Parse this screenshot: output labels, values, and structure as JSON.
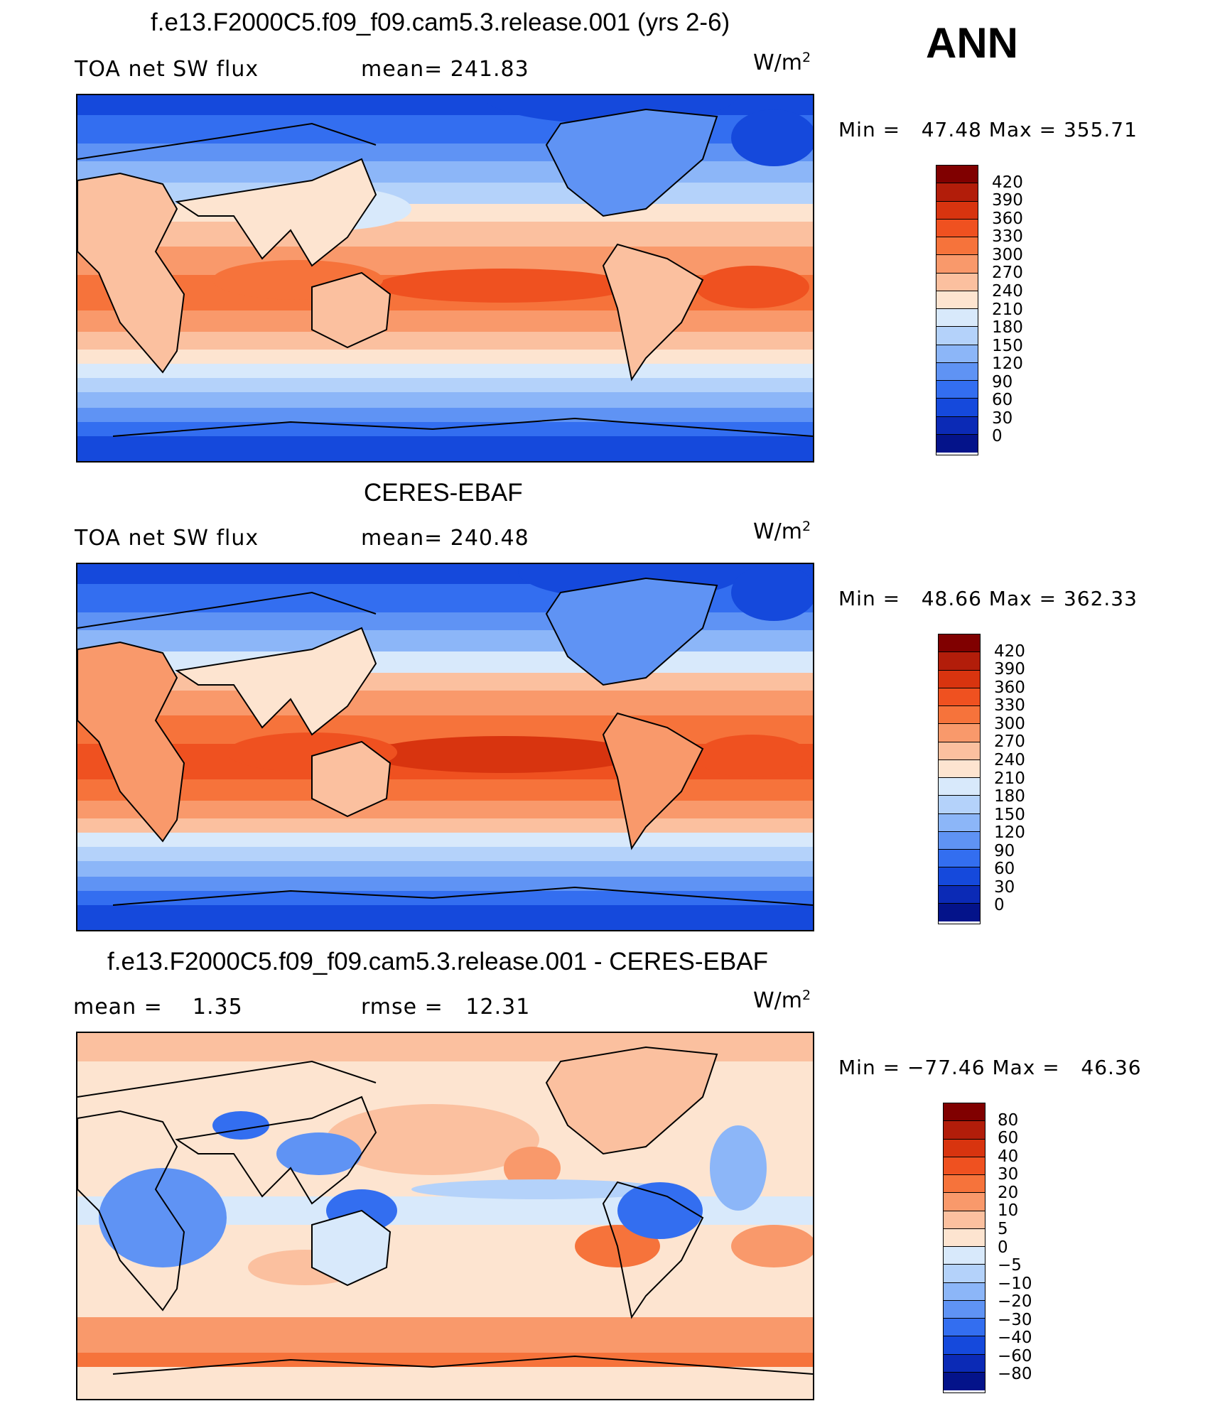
{
  "season": "ANN",
  "units_base": "W/m",
  "units_exp": "2",
  "panels": [
    {
      "title": "f.e13.F2000C5.f09_f09.cam5.3.release.001 (yrs 2-6)",
      "left_label": "TOA net SW flux",
      "mid_label": "mean= 241.83",
      "minmax": "Min =   47.48 Max = 355.71",
      "palette": "abs",
      "colorbar_labels": [
        "420",
        "390",
        "360",
        "330",
        "300",
        "270",
        "240",
        "210",
        "180",
        "150",
        "120",
        "90",
        "60",
        "30",
        "0"
      ]
    },
    {
      "title": "CERES-EBAF",
      "left_label": "TOA net SW flux",
      "mid_label": "mean= 240.48",
      "minmax": "Min =   48.66 Max = 362.33",
      "palette": "abs",
      "colorbar_labels": [
        "420",
        "390",
        "360",
        "330",
        "300",
        "270",
        "240",
        "210",
        "180",
        "150",
        "120",
        "90",
        "60",
        "30",
        "0"
      ]
    },
    {
      "title": "f.e13.F2000C5.f09_f09.cam5.3.release.001 - CERES-EBAF",
      "left_label": "mean =    1.35",
      "mid_label": "rmse =   12.31",
      "minmax": "Min = −77.46 Max =   46.36",
      "palette": "diff",
      "colorbar_labels": [
        "80",
        "60",
        "40",
        "30",
        "20",
        "10",
        "5",
        "0",
        "−5",
        "−10",
        "−20",
        "−30",
        "−40",
        "−60",
        "−80"
      ]
    }
  ],
  "colors": {
    "abs_palette": [
      "#800000",
      "#b21d0a",
      "#d8340f",
      "#ef5120",
      "#f6733b",
      "#f9996b",
      "#fbc09f",
      "#fde4d0",
      "#d8e9fb",
      "#b4d2fa",
      "#8cb6f8",
      "#5f93f4",
      "#336ef0",
      "#1549dc",
      "#0b2ab6",
      "#04138a"
    ],
    "diff_palette": [
      "#800000",
      "#b21d0a",
      "#d8340f",
      "#ef5120",
      "#f6733b",
      "#f9996b",
      "#fbc09f",
      "#fde4d0",
      "#d8e9fb",
      "#b4d2fa",
      "#8cb6f8",
      "#5f93f4",
      "#336ef0",
      "#1549dc",
      "#0b2ab6",
      "#04138a"
    ]
  }
}
